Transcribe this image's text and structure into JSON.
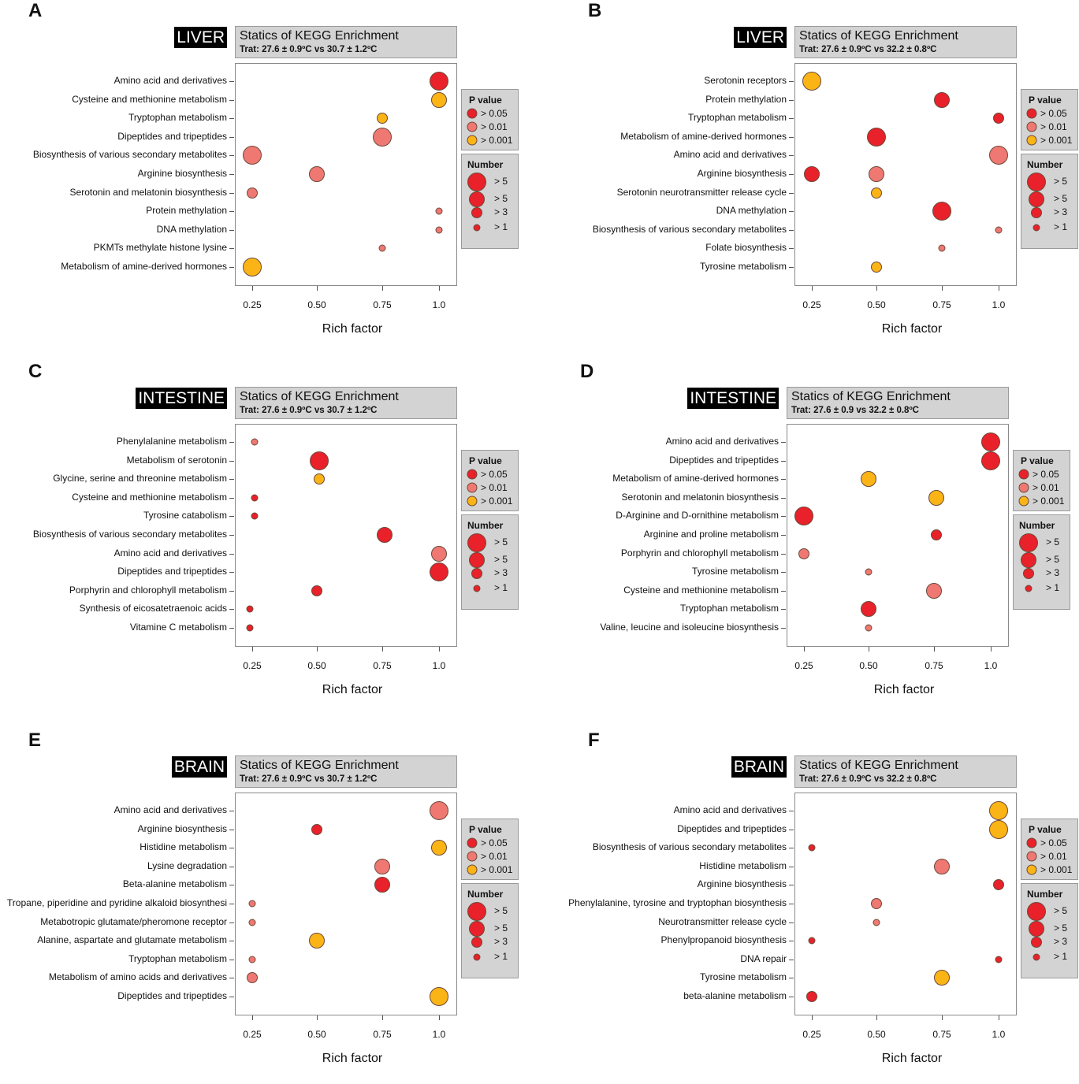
{
  "colors": {
    "p_gt_0.05": "#e8212a",
    "p_gt_0.01": "#ef7872",
    "p_gt_0.001": "#fbb416"
  },
  "legend": {
    "p_title": "P value",
    "p_labels": [
      "> 0.05",
      "> 0.01",
      "> 0.001"
    ],
    "number_title": "Number",
    "number_labels": [
      "> 5",
      "> 5",
      "> 3",
      "> 1"
    ]
  },
  "chart_data": [
    {
      "type": "scatter",
      "panel": "A",
      "tissue": "LIVER",
      "title": "Statics of KEGG Enrichment",
      "subtitle": "Trat: 27.6 ± 0.9ºC vs 30.7 ± 1.2ºC",
      "xlabel": "Rich factor",
      "xticks": [
        "0.25",
        "0.50",
        "0.75",
        "1.0"
      ],
      "rows": [
        "Amino acid and derivatives",
        "Cysteine and methionine metabolism",
        "Tryptophan metabolism",
        "Dipeptides and tripeptides",
        "Biosynthesis of various secondary metabolites",
        "Arginine biosynthesis",
        "Serotonin and melatonin biosynthesis",
        "Protein methylation",
        "DNA methylation",
        "PKMTs methylate histone lysine",
        "Metabolism of amine-derived hormones"
      ],
      "points": [
        {
          "row": 0,
          "rich_factor": 1.0,
          "p_class": 0,
          "number_class": 0
        },
        {
          "row": 1,
          "rich_factor": 1.0,
          "p_class": 2,
          "number_class": 1
        },
        {
          "row": 2,
          "rich_factor": 0.75,
          "p_class": 2,
          "number_class": 2
        },
        {
          "row": 3,
          "rich_factor": 0.75,
          "p_class": 1,
          "number_class": 0
        },
        {
          "row": 4,
          "rich_factor": 0.25,
          "p_class": 1,
          "number_class": 0
        },
        {
          "row": 5,
          "rich_factor": 0.5,
          "p_class": 1,
          "number_class": 1
        },
        {
          "row": 6,
          "rich_factor": 0.25,
          "p_class": 1,
          "number_class": 2
        },
        {
          "row": 7,
          "rich_factor": 1.0,
          "p_class": 1,
          "number_class": 3
        },
        {
          "row": 8,
          "rich_factor": 1.0,
          "p_class": 1,
          "number_class": 3
        },
        {
          "row": 9,
          "rich_factor": 0.75,
          "p_class": 1,
          "number_class": 3
        },
        {
          "row": 10,
          "rich_factor": 0.25,
          "p_class": 2,
          "number_class": 0
        }
      ]
    },
    {
      "type": "scatter",
      "panel": "B",
      "tissue": "LIVER",
      "title": "Statics of KEGG Enrichment",
      "subtitle": "Trat: 27.6 ± 0.9ºC vs 32.2 ± 0.8ºC",
      "xlabel": "Rich factor",
      "xticks": [
        "0.25",
        "0.50",
        "0.75",
        "1.0"
      ],
      "rows": [
        "Serotonin receptors",
        "Protein methylation",
        "Tryptophan metabolism",
        "Metabolism of amine-derived hormones",
        "Amino acid and derivatives",
        "Arginine biosynthesis",
        "Serotonin neurotransmitter release cycle",
        "DNA methylation",
        "Biosynthesis of various secondary metabolites",
        "Folate biosynthesis",
        "Tyrosine metabolism"
      ],
      "points": [
        {
          "row": 0,
          "rich_factor": 0.25,
          "p_class": 2,
          "number_class": 0
        },
        {
          "row": 1,
          "rich_factor": 0.75,
          "p_class": 0,
          "number_class": 1
        },
        {
          "row": 2,
          "rich_factor": 1.0,
          "p_class": 0,
          "number_class": 2
        },
        {
          "row": 3,
          "rich_factor": 0.5,
          "p_class": 0,
          "number_class": 0
        },
        {
          "row": 4,
          "rich_factor": 1.0,
          "p_class": 1,
          "number_class": 0
        },
        {
          "row": 5,
          "rich_factor": 0.25,
          "p_class": 0,
          "number_class": 1
        },
        {
          "row": 5,
          "rich_factor": 0.5,
          "p_class": 1,
          "number_class": 1
        },
        {
          "row": 6,
          "rich_factor": 0.5,
          "p_class": 2,
          "number_class": 2
        },
        {
          "row": 7,
          "rich_factor": 0.75,
          "p_class": 0,
          "number_class": 0
        },
        {
          "row": 8,
          "rich_factor": 1.0,
          "p_class": 1,
          "number_class": 3
        },
        {
          "row": 9,
          "rich_factor": 0.75,
          "p_class": 1,
          "number_class": 3
        },
        {
          "row": 10,
          "rich_factor": 0.5,
          "p_class": 2,
          "number_class": 2
        }
      ]
    },
    {
      "type": "scatter",
      "panel": "C",
      "tissue": "INTESTINE",
      "title": "Statics of KEGG Enrichment",
      "subtitle": "Trat: 27.6 ± 0.9ºC vs 30.7 ± 1.2ºC",
      "xlabel": "Rich factor",
      "xticks": [
        "0.25",
        "0.50",
        "0.75",
        "1.0"
      ],
      "rows": [
        "Phenylalanine metabolism",
        "Metabolism of serotonin",
        "Glycine, serine and threonine metabolism",
        "Cysteine and methionine metabolism",
        "Tyrosine catabolism",
        "Biosynthesis of various secondary metabolites",
        "Amino acid and derivatives",
        "Dipeptides and tripeptides",
        "Porphyrin and chlorophyll metabolism",
        "Synthesis of eicosatetraenoic acids",
        "Vitamine C metabolism"
      ],
      "points": [
        {
          "row": 0,
          "rich_factor": 0.26,
          "p_class": 1,
          "number_class": 3
        },
        {
          "row": 1,
          "rich_factor": 0.51,
          "p_class": 0,
          "number_class": 0
        },
        {
          "row": 2,
          "rich_factor": 0.51,
          "p_class": 2,
          "number_class": 2
        },
        {
          "row": 3,
          "rich_factor": 0.26,
          "p_class": 0,
          "number_class": 3
        },
        {
          "row": 4,
          "rich_factor": 0.26,
          "p_class": 0,
          "number_class": 3
        },
        {
          "row": 5,
          "rich_factor": 0.76,
          "p_class": 0,
          "number_class": 1
        },
        {
          "row": 6,
          "rich_factor": 1.0,
          "p_class": 1,
          "number_class": 1
        },
        {
          "row": 7,
          "rich_factor": 1.0,
          "p_class": 0,
          "number_class": 0
        },
        {
          "row": 8,
          "rich_factor": 0.5,
          "p_class": 0,
          "number_class": 2
        },
        {
          "row": 9,
          "rich_factor": 0.24,
          "p_class": 0,
          "number_class": 3
        },
        {
          "row": 10,
          "rich_factor": 0.24,
          "p_class": 0,
          "number_class": 3
        }
      ]
    },
    {
      "type": "scatter",
      "panel": "D",
      "tissue": "INTESTINE",
      "title": "Statics of KEGG Enrichment",
      "subtitle": "Trat: 27.6 ± 0.9 vs 32.2 ± 0.8ºC",
      "xlabel": "Rich factor",
      "xticks": [
        "0.25",
        "0.50",
        "0.75",
        "1.0"
      ],
      "rows": [
        "Amino acid and derivatives",
        "Dipeptides and tripeptides",
        "Metabolism of amine-derived hormones",
        "Serotonin and melatonin biosynthesis",
        "D-Arginine and D-ornithine metabolism",
        "Arginine and proline metabolism",
        "Porphyrin and chlorophyll metabolism",
        "Tyrosine metabolism",
        "Cysteine and methionine metabolism",
        "Tryptophan metabolism",
        "Valine, leucine and isoleucine biosynthesis"
      ],
      "points": [
        {
          "row": 0,
          "rich_factor": 1.0,
          "p_class": 0,
          "number_class": 0
        },
        {
          "row": 1,
          "rich_factor": 1.0,
          "p_class": 0,
          "number_class": 0
        },
        {
          "row": 2,
          "rich_factor": 0.5,
          "p_class": 2,
          "number_class": 1
        },
        {
          "row": 3,
          "rich_factor": 0.76,
          "p_class": 2,
          "number_class": 1
        },
        {
          "row": 4,
          "rich_factor": 0.25,
          "p_class": 0,
          "number_class": 0
        },
        {
          "row": 5,
          "rich_factor": 0.76,
          "p_class": 0,
          "number_class": 2
        },
        {
          "row": 6,
          "rich_factor": 0.25,
          "p_class": 1,
          "number_class": 2
        },
        {
          "row": 7,
          "rich_factor": 0.5,
          "p_class": 1,
          "number_class": 3
        },
        {
          "row": 8,
          "rich_factor": 0.75,
          "p_class": 1,
          "number_class": 1
        },
        {
          "row": 9,
          "rich_factor": 0.5,
          "p_class": 0,
          "number_class": 1
        },
        {
          "row": 10,
          "rich_factor": 0.5,
          "p_class": 1,
          "number_class": 3
        }
      ]
    },
    {
      "type": "scatter",
      "panel": "E",
      "tissue": "BRAIN",
      "title": "Statics of KEGG Enrichment",
      "subtitle": "Trat: 27.6 ± 0.9ºC vs 30.7 ± 1.2ºC",
      "xlabel": "Rich factor",
      "xticks": [
        "0.25",
        "0.50",
        "0.75",
        "1.0"
      ],
      "rows": [
        "Amino acid and derivatives",
        "Arginine biosynthesis",
        "Histidine metabolism",
        "Lysine degradation",
        "Beta-alanine metabolism",
        "Tropane, piperidine and pyridine alkaloid biosynthesi",
        "Metabotropic glutamate/pheromone receptor",
        "Alanine, aspartate and glutamate metabolism",
        "Tryptophan metabolism",
        "Metabolism of amino acids and derivatives",
        "Dipeptides and tripeptides"
      ],
      "points": [
        {
          "row": 0,
          "rich_factor": 1.0,
          "p_class": 1,
          "number_class": 0
        },
        {
          "row": 1,
          "rich_factor": 0.5,
          "p_class": 0,
          "number_class": 2
        },
        {
          "row": 2,
          "rich_factor": 1.0,
          "p_class": 2,
          "number_class": 1
        },
        {
          "row": 3,
          "rich_factor": 0.75,
          "p_class": 1,
          "number_class": 1
        },
        {
          "row": 4,
          "rich_factor": 0.75,
          "p_class": 0,
          "number_class": 1
        },
        {
          "row": 5,
          "rich_factor": 0.25,
          "p_class": 1,
          "number_class": 3
        },
        {
          "row": 6,
          "rich_factor": 0.25,
          "p_class": 1,
          "number_class": 3
        },
        {
          "row": 7,
          "rich_factor": 0.5,
          "p_class": 2,
          "number_class": 1
        },
        {
          "row": 8,
          "rich_factor": 0.25,
          "p_class": 1,
          "number_class": 3
        },
        {
          "row": 9,
          "rich_factor": 0.25,
          "p_class": 1,
          "number_class": 2
        },
        {
          "row": 10,
          "rich_factor": 1.0,
          "p_class": 2,
          "number_class": 0
        }
      ]
    },
    {
      "type": "scatter",
      "panel": "F",
      "tissue": "BRAIN",
      "title": "Statics of KEGG Enrichment",
      "subtitle": "Trat: 27.6 ± 0.9ºC vs 32.2 ± 0.8ºC",
      "xlabel": "Rich factor",
      "xticks": [
        "0.25",
        "0.50",
        "0.75",
        "1.0"
      ],
      "rows": [
        "Amino acid and derivatives",
        "Dipeptides and tripeptides",
        "Biosynthesis of various secondary metabolites",
        "Histidine metabolism",
        "Arginine biosynthesis",
        "Phenylalanine, tyrosine and tryptophan biosynthesis",
        "Neurotransmitter release cycle",
        "Phenylpropanoid biosynthesis",
        "DNA repair",
        "Tyrosine metabolism",
        "beta-alanine metabolism"
      ],
      "points": [
        {
          "row": 0,
          "rich_factor": 1.0,
          "p_class": 2,
          "number_class": 0
        },
        {
          "row": 1,
          "rich_factor": 1.0,
          "p_class": 2,
          "number_class": 0
        },
        {
          "row": 2,
          "rich_factor": 0.25,
          "p_class": 0,
          "number_class": 3
        },
        {
          "row": 3,
          "rich_factor": 0.75,
          "p_class": 1,
          "number_class": 1
        },
        {
          "row": 4,
          "rich_factor": 1.0,
          "p_class": 0,
          "number_class": 2
        },
        {
          "row": 5,
          "rich_factor": 0.5,
          "p_class": 1,
          "number_class": 2
        },
        {
          "row": 6,
          "rich_factor": 0.5,
          "p_class": 1,
          "number_class": 3
        },
        {
          "row": 7,
          "rich_factor": 0.25,
          "p_class": 0,
          "number_class": 3
        },
        {
          "row": 8,
          "rich_factor": 1.0,
          "p_class": 0,
          "number_class": 3
        },
        {
          "row": 9,
          "rich_factor": 0.75,
          "p_class": 2,
          "number_class": 1
        },
        {
          "row": 10,
          "rich_factor": 0.25,
          "p_class": 0,
          "number_class": 2
        }
      ]
    }
  ]
}
